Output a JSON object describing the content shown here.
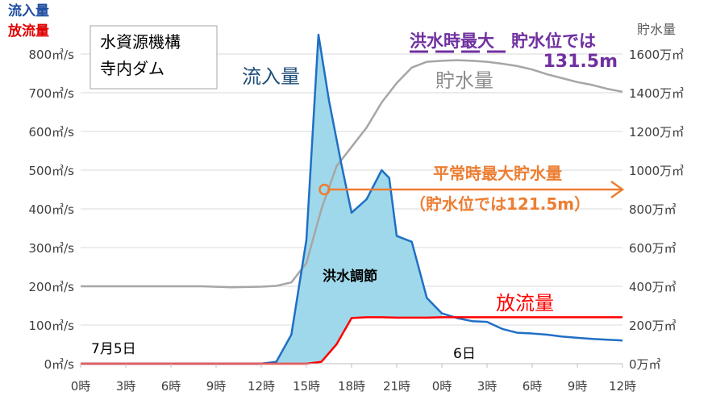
{
  "chart_data": {
    "type": "line",
    "title_box": [
      "水資源機構",
      "寺内ダム"
    ],
    "left_axis": {
      "title_lines": [
        "流入量",
        "放流量"
      ],
      "title_colors": [
        "#1f4ea0",
        "#e00000"
      ],
      "ticks": [
        0,
        100,
        200,
        300,
        400,
        500,
        600,
        700,
        800
      ],
      "unit": "㎥/s",
      "ylim": [
        0,
        800
      ]
    },
    "right_axis": {
      "title": "貯水量",
      "ticks": [
        0,
        200,
        400,
        600,
        800,
        1000,
        1200,
        1400,
        1600
      ],
      "unit": "万㎥",
      "ylim": [
        0,
        1600
      ]
    },
    "x_axis": {
      "tick_labels": [
        "0時",
        "3時",
        "6時",
        "9時",
        "12時",
        "15時",
        "18時",
        "21時",
        "0時",
        "3時",
        "6時",
        "9時",
        "12時"
      ],
      "date_labels": [
        {
          "text": "7月5日",
          "x": 0
        },
        {
          "text": "6日",
          "x": 26.5
        }
      ],
      "xlim": [
        0,
        36
      ]
    },
    "series": [
      {
        "name": "流入量",
        "axis": "left",
        "color": "#1f6fc5",
        "x": [
          0,
          12,
          13,
          14,
          15,
          15.8,
          16.5,
          17.3,
          18,
          19,
          20,
          20.5,
          21,
          22,
          23,
          24,
          25,
          26,
          27,
          28,
          29,
          30,
          31,
          32,
          33,
          34,
          35,
          36
        ],
        "y": [
          0,
          0,
          5,
          75,
          320,
          850,
          680,
          520,
          390,
          425,
          500,
          480,
          330,
          315,
          170,
          130,
          118,
          110,
          108,
          90,
          80,
          78,
          75,
          70,
          67,
          64,
          62,
          60
        ]
      },
      {
        "name": "放流量",
        "axis": "left",
        "color": "#ff0000",
        "x": [
          0,
          15,
          16,
          17,
          18,
          19,
          20,
          21,
          22,
          23,
          24,
          25,
          26,
          27,
          28,
          29,
          30,
          31,
          32,
          33,
          34,
          35,
          36
        ],
        "y": [
          0,
          0,
          5,
          50,
          118,
          120,
          120,
          119,
          119,
          119,
          120,
          120,
          120,
          120,
          120,
          120,
          120,
          120,
          120,
          120,
          120,
          120,
          120
        ]
      },
      {
        "name": "貯水量",
        "axis": "right",
        "color": "#a6a6a6",
        "x": [
          0,
          4,
          8,
          10,
          12,
          13,
          14,
          15,
          16,
          17,
          18,
          19,
          20,
          21,
          22,
          23,
          24,
          25,
          26,
          27,
          28,
          29,
          30,
          31,
          32,
          33,
          34,
          35,
          36
        ],
        "y": [
          400,
          400,
          400,
          395,
          398,
          402,
          420,
          520,
          800,
          1020,
          1120,
          1220,
          1350,
          1450,
          1530,
          1560,
          1565,
          1568,
          1565,
          1560,
          1550,
          1538,
          1520,
          1495,
          1475,
          1455,
          1440,
          1420,
          1405
        ]
      }
    ],
    "labels": {
      "inflow": "流入量",
      "outflow": "放流量",
      "storage": "貯水量",
      "flood_control": "洪水調節",
      "flood_max_line1": "洪水時最大　貯水位では",
      "flood_max_line2": "131.5m",
      "normal_max_line1": "平常時最大貯水量",
      "normal_max_line2": "（貯水位では121.5m）"
    },
    "colors": {
      "inflow_fill": "#9fd8ea",
      "purple": "#7030a0",
      "orange": "#ed7d31",
      "text_blue": "#1f4e79"
    },
    "normal_max_storage": 900
  }
}
